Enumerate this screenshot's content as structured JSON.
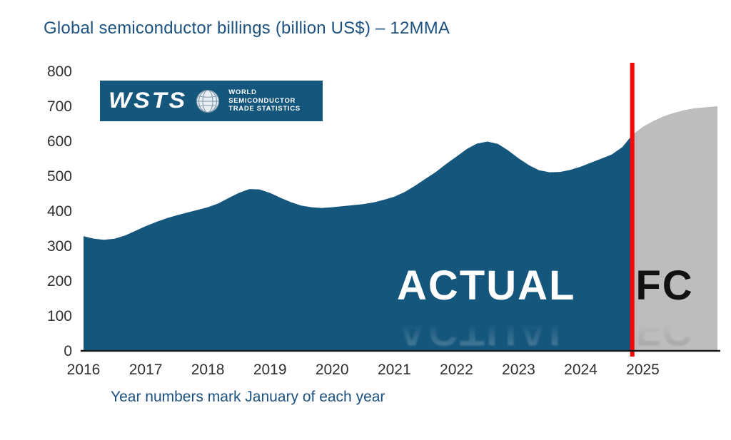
{
  "page": {
    "title": "Global semiconductor billings (billion US$) – 12MMA",
    "footnote": "Year numbers mark January of each year"
  },
  "logo": {
    "wordmark": "WSTS",
    "lines": [
      "WORLD",
      "SEMICONDUCTOR",
      "TRADE STATISTICS"
    ]
  },
  "labels": {
    "actual": "ACTUAL",
    "forecast": "FC"
  },
  "colors": {
    "actual_area": "#15567d",
    "forecast_area": "#bdbdbd",
    "divider_line": "#fb0505",
    "axis_line": "#1a1a1a",
    "title_text": "#1c5180",
    "logo_bg": "#15567d"
  },
  "chart_data": {
    "type": "area",
    "title": "Global semiconductor billings (billion US$) – 12MMA",
    "note": "Year numbers mark January of each year",
    "unit": "billion US$",
    "x_ticks": [
      2016,
      2017,
      2018,
      2019,
      2020,
      2021,
      2022,
      2023,
      2024,
      2025
    ],
    "y_ticks": [
      0,
      100,
      200,
      300,
      400,
      500,
      600,
      700,
      800
    ],
    "xlim": [
      2016,
      2026.2
    ],
    "ylim": [
      0,
      800
    ],
    "forecast_start": 2024.83,
    "grid": false,
    "series": [
      {
        "name": "ACTUAL",
        "color": "#15567d",
        "points": [
          [
            2016.0,
            328
          ],
          [
            2016.17,
            321
          ],
          [
            2016.33,
            318
          ],
          [
            2016.5,
            321
          ],
          [
            2016.67,
            330
          ],
          [
            2016.83,
            343
          ],
          [
            2017.0,
            357
          ],
          [
            2017.17,
            369
          ],
          [
            2017.33,
            379
          ],
          [
            2017.5,
            388
          ],
          [
            2017.67,
            396
          ],
          [
            2017.83,
            403
          ],
          [
            2018.0,
            411
          ],
          [
            2018.17,
            422
          ],
          [
            2018.33,
            437
          ],
          [
            2018.5,
            452
          ],
          [
            2018.67,
            463
          ],
          [
            2018.83,
            462
          ],
          [
            2019.0,
            452
          ],
          [
            2019.17,
            438
          ],
          [
            2019.33,
            426
          ],
          [
            2019.5,
            416
          ],
          [
            2019.67,
            411
          ],
          [
            2019.83,
            409
          ],
          [
            2020.0,
            411
          ],
          [
            2020.17,
            414
          ],
          [
            2020.33,
            417
          ],
          [
            2020.5,
            420
          ],
          [
            2020.67,
            425
          ],
          [
            2020.83,
            432
          ],
          [
            2021.0,
            441
          ],
          [
            2021.17,
            455
          ],
          [
            2021.33,
            472
          ],
          [
            2021.5,
            492
          ],
          [
            2021.67,
            512
          ],
          [
            2021.83,
            534
          ],
          [
            2022.0,
            556
          ],
          [
            2022.17,
            578
          ],
          [
            2022.33,
            593
          ],
          [
            2022.5,
            599
          ],
          [
            2022.67,
            592
          ],
          [
            2022.83,
            574
          ],
          [
            2023.0,
            551
          ],
          [
            2023.17,
            531
          ],
          [
            2023.33,
            517
          ],
          [
            2023.5,
            511
          ],
          [
            2023.67,
            512
          ],
          [
            2023.83,
            518
          ],
          [
            2024.0,
            527
          ],
          [
            2024.17,
            539
          ],
          [
            2024.33,
            550
          ],
          [
            2024.5,
            562
          ],
          [
            2024.67,
            583
          ],
          [
            2024.83,
            618
          ]
        ]
      },
      {
        "name": "FC",
        "color": "#bdbdbd",
        "points": [
          [
            2024.83,
            618
          ],
          [
            2025.0,
            641
          ],
          [
            2025.17,
            658
          ],
          [
            2025.33,
            671
          ],
          [
            2025.5,
            681
          ],
          [
            2025.67,
            689
          ],
          [
            2025.83,
            694
          ],
          [
            2026.0,
            697
          ],
          [
            2026.2,
            700
          ]
        ]
      }
    ]
  }
}
